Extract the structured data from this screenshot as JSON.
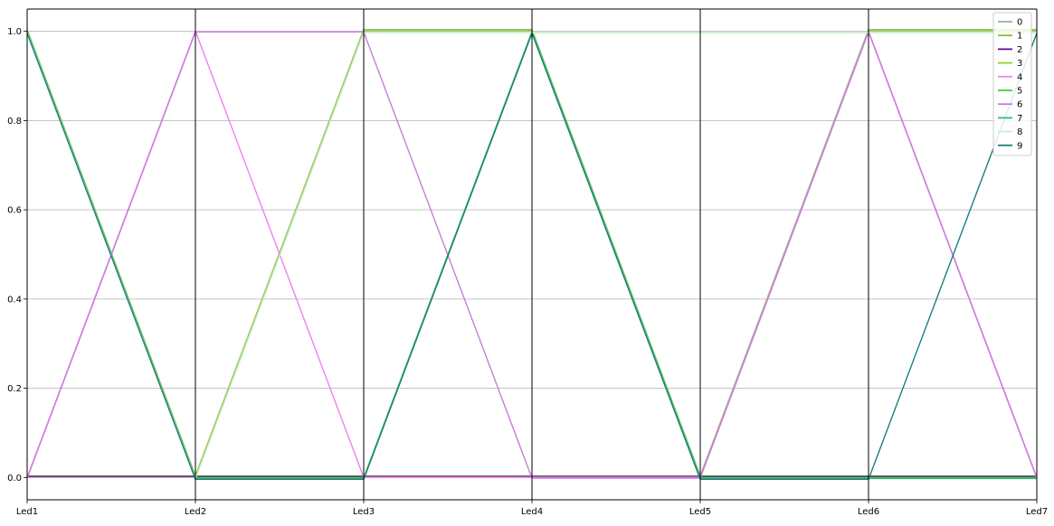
{
  "chart_data": {
    "type": "parallel_coordinates",
    "categories": [
      "Led1",
      "Led2",
      "Led3",
      "Led4",
      "Led5",
      "Led6",
      "Led7"
    ],
    "ylim": [
      -0.05,
      1.05
    ],
    "yticks": [
      0.0,
      0.2,
      0.4,
      0.6,
      0.8,
      1.0
    ],
    "ytick_labels": [
      "0.0",
      "0.2",
      "0.4",
      "0.6",
      "0.8",
      "1.0"
    ],
    "grid": true,
    "legend_position": "top-right",
    "series": [
      {
        "name": "0",
        "color": "#8fbc8f",
        "values": [
          1,
          0,
          1,
          1,
          0,
          1,
          1
        ]
      },
      {
        "name": "1",
        "color": "#7cc623",
        "values": [
          0,
          0,
          0,
          0,
          0,
          0,
          0
        ]
      },
      {
        "name": "2",
        "color": "#6a0a8c",
        "values": [
          0,
          0,
          0,
          0,
          0,
          0,
          0
        ]
      },
      {
        "name": "3",
        "color": "#9acd32",
        "values": [
          1,
          0,
          1,
          1,
          0,
          1,
          1
        ]
      },
      {
        "name": "4",
        "color": "#ee82ee",
        "values": [
          0,
          1,
          0,
          0,
          0,
          1,
          0
        ]
      },
      {
        "name": "5",
        "color": "#3fd13f",
        "values": [
          1,
          0,
          0,
          1,
          0,
          0,
          0
        ]
      },
      {
        "name": "6",
        "color": "#c77dd8",
        "values": [
          0,
          1,
          1,
          0,
          0,
          1,
          0
        ]
      },
      {
        "name": "7",
        "color": "#2fbf71",
        "values": [
          1,
          0,
          0,
          1,
          0,
          0,
          0
        ]
      },
      {
        "name": "8",
        "color": "#c8f0c8",
        "values": [
          1,
          0,
          1,
          1,
          1,
          1,
          1
        ]
      },
      {
        "name": "9",
        "color": "#1a7f7f",
        "values": [
          1,
          0,
          0,
          1,
          0,
          0,
          1
        ]
      }
    ]
  }
}
